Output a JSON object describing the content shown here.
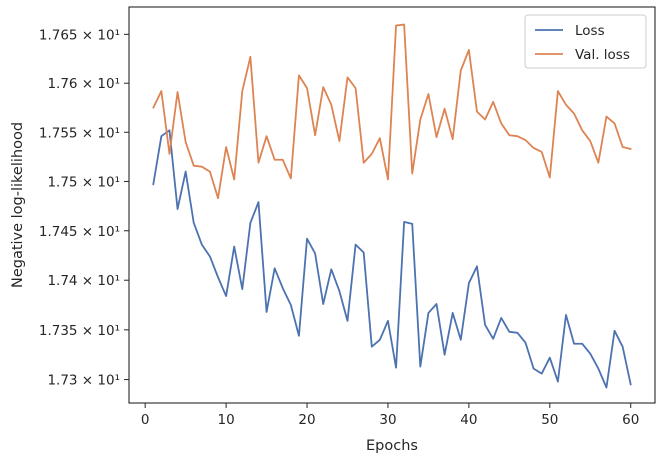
{
  "chart_data": {
    "type": "line",
    "title": "",
    "xlabel": "Epochs",
    "ylabel": "Negative log-likelihood",
    "xlim": [
      -2,
      63
    ],
    "ylim": [
      17.2765,
      17.678
    ],
    "yscale": "log",
    "grid": false,
    "legend_position": "top-right",
    "x_ticks": [
      0,
      10,
      20,
      30,
      40,
      50,
      60
    ],
    "x_tick_labels": [
      "0",
      "10",
      "20",
      "30",
      "40",
      "50",
      "60"
    ],
    "y_ticks": [
      17.3,
      17.35,
      17.4,
      17.45,
      17.5,
      17.55,
      17.6,
      17.65
    ],
    "y_tick_labels": [
      "1.73 × 10¹",
      "1.735 × 10¹",
      "1.74 × 10¹",
      "1.745 × 10¹",
      "1.75 × 10¹",
      "1.755 × 10¹",
      "1.76 × 10¹",
      "1.765 × 10¹"
    ],
    "x": [
      1,
      2,
      3,
      4,
      5,
      6,
      7,
      8,
      9,
      10,
      11,
      12,
      13,
      14,
      15,
      16,
      17,
      18,
      19,
      20,
      21,
      22,
      23,
      24,
      25,
      26,
      27,
      28,
      29,
      30,
      31,
      32,
      33,
      34,
      35,
      36,
      37,
      38,
      39,
      40,
      41,
      42,
      43,
      44,
      45,
      46,
      47,
      48,
      49,
      50,
      51,
      52,
      53,
      54,
      55,
      56,
      57,
      58,
      59,
      60
    ],
    "series": [
      {
        "name": "Loss",
        "color": "#4c72b0",
        "values": [
          17.497,
          17.546,
          17.552,
          17.472,
          17.51,
          17.458,
          17.436,
          17.424,
          17.403,
          17.384,
          17.434,
          17.391,
          17.458,
          17.479,
          17.368,
          17.412,
          17.392,
          17.375,
          17.344,
          17.442,
          17.427,
          17.376,
          17.411,
          17.389,
          17.359,
          17.436,
          17.428,
          17.333,
          17.34,
          17.359,
          17.312,
          17.459,
          17.457,
          17.313,
          17.367,
          17.376,
          17.325,
          17.367,
          17.34,
          17.397,
          17.414,
          17.355,
          17.341,
          17.362,
          17.348,
          17.347,
          17.337,
          17.311,
          17.306,
          17.322,
          17.298,
          17.365,
          17.336,
          17.336,
          17.326,
          17.311,
          17.292,
          17.349,
          17.333,
          17.295
        ]
      },
      {
        "name": "Val. loss",
        "color": "#dd8452",
        "values": [
          17.575,
          17.592,
          17.528,
          17.591,
          17.54,
          17.516,
          17.515,
          17.51,
          17.483,
          17.535,
          17.502,
          17.592,
          17.627,
          17.519,
          17.546,
          17.522,
          17.522,
          17.503,
          17.608,
          17.595,
          17.547,
          17.596,
          17.578,
          17.541,
          17.606,
          17.595,
          17.519,
          17.528,
          17.544,
          17.502,
          17.659,
          17.66,
          17.508,
          17.563,
          17.589,
          17.545,
          17.574,
          17.543,
          17.613,
          17.634,
          17.571,
          17.563,
          17.581,
          17.559,
          17.547,
          17.546,
          17.542,
          17.534,
          17.53,
          17.504,
          17.592,
          17.578,
          17.569,
          17.552,
          17.541,
          17.519,
          17.566,
          17.559,
          17.535,
          17.533
        ]
      }
    ]
  }
}
